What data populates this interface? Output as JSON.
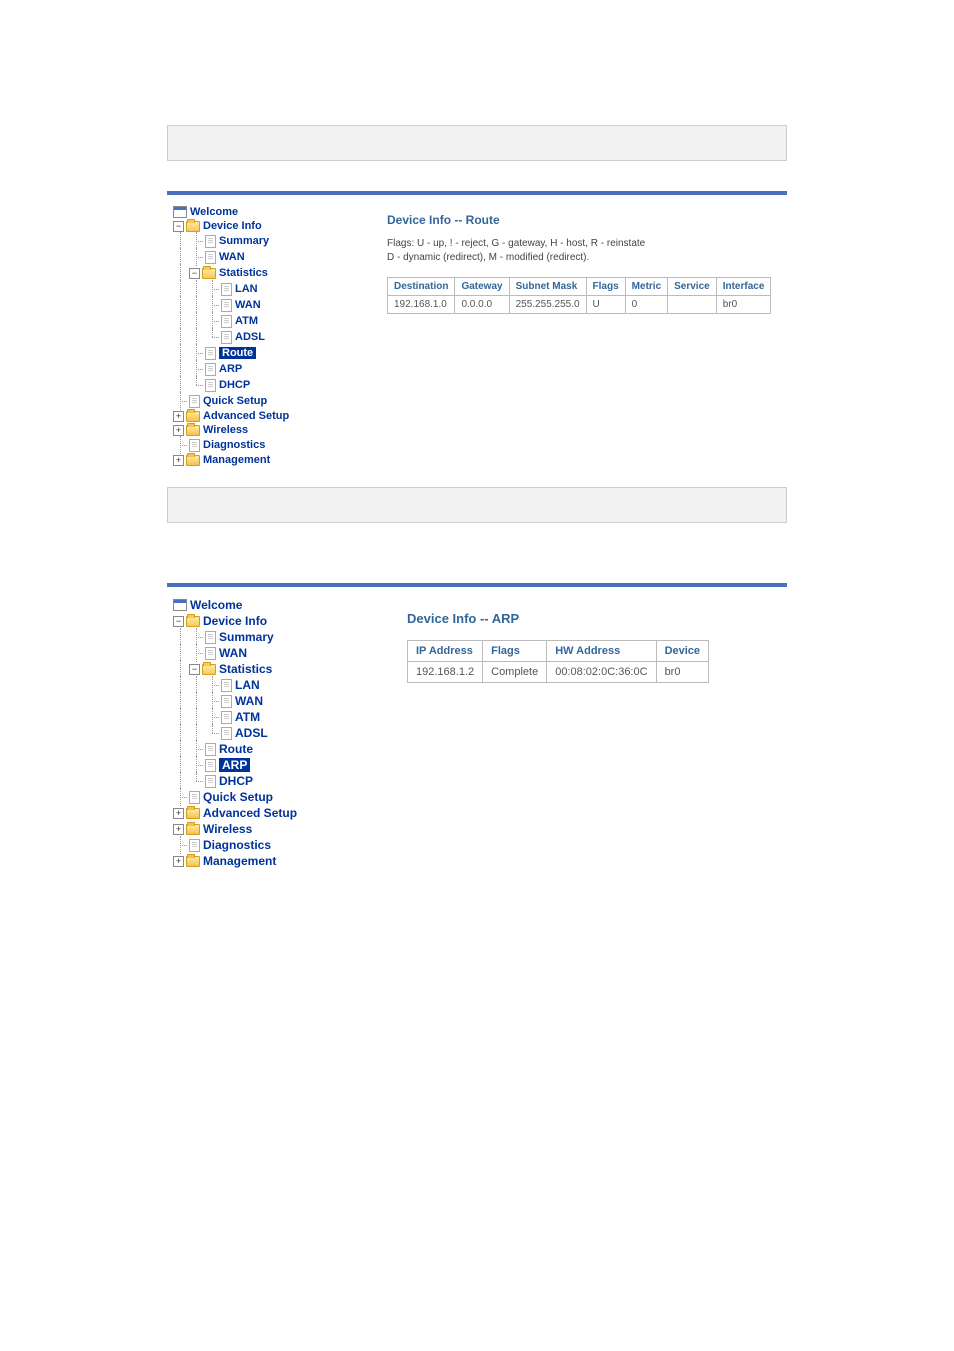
{
  "colors": {
    "accent_bar": "#4a6fbf",
    "header_text": "#336699",
    "nav_text": "#003399",
    "nav_selected_bg": "#003399",
    "nav_selected_fg": "#ffffff",
    "border": "#bbbbbb",
    "grey_box_bg": "#f2f2f2",
    "grey_box_border": "#cccccc"
  },
  "nav": {
    "welcome": "Welcome",
    "device_info": "Device Info",
    "summary": "Summary",
    "wan": "WAN",
    "statistics": "Statistics",
    "stat_lan": "LAN",
    "stat_wan": "WAN",
    "stat_atm": "ATM",
    "stat_adsl": "ADSL",
    "route": "Route",
    "arp": "ARP",
    "dhcp": "DHCP",
    "quick_setup": "Quick Setup",
    "advanced_setup": "Advanced Setup",
    "wireless": "Wireless",
    "diagnostics": "Diagnostics",
    "management": "Management"
  },
  "route_panel": {
    "title": "Device Info -- Route",
    "note_line1": "Flags: U - up, ! - reject, G - gateway, H - host, R - reinstate",
    "note_line2": "D - dynamic (redirect), M - modified (redirect).",
    "table": {
      "columns": [
        "Destination",
        "Gateway",
        "Subnet Mask",
        "Flags",
        "Metric",
        "Service",
        "Interface"
      ],
      "rows": [
        [
          "192.168.1.0",
          "0.0.0.0",
          "255.255.255.0",
          "U",
          "0",
          "",
          "br0"
        ]
      ]
    }
  },
  "arp_panel": {
    "title": "Device Info -- ARP",
    "table": {
      "columns": [
        "IP Address",
        "Flags",
        "HW Address",
        "Device"
      ],
      "rows": [
        [
          "192.168.1.2",
          "Complete",
          "00:08:02:0C:36:0C",
          "br0"
        ]
      ]
    }
  }
}
